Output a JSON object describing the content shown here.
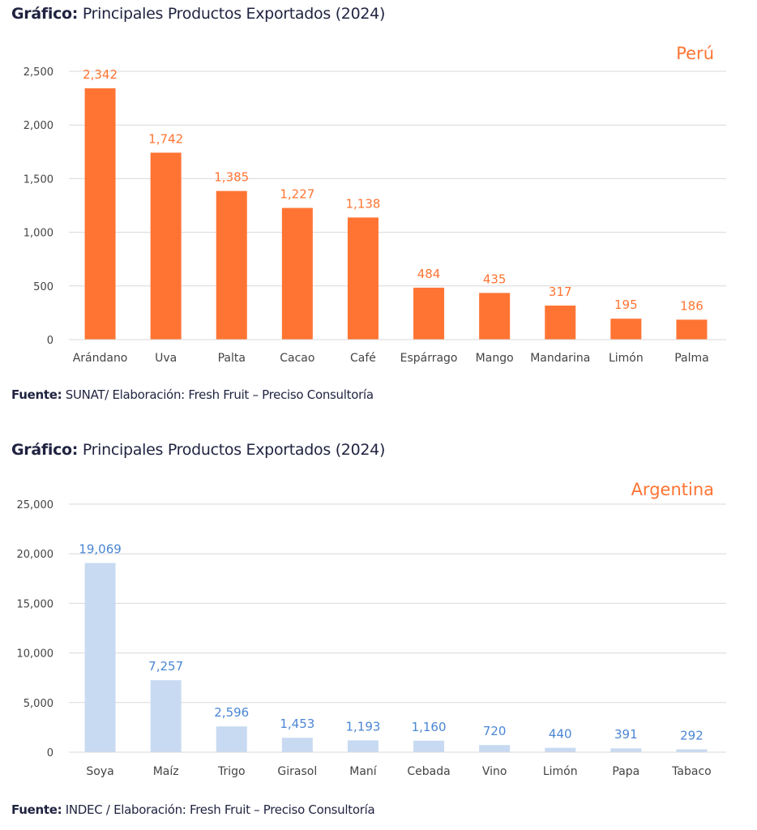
{
  "charts": [
    {
      "heading_bold": "Gráfico:",
      "heading_rest": " Principales Productos Exportados (2024)",
      "source_bold": "Fuente:",
      "source_rest": " SUNAT/ Elaboración: Fresh Fruit – Preciso Consultoría"
    },
    {
      "heading_bold": "Gráfico:",
      "heading_rest": " Principales Productos Exportados (2024)",
      "source_bold": "Fuente:",
      "source_rest": "  INDEC / Elaboración: Fresh Fruit – Preciso Consultoría"
    }
  ],
  "chart_data": [
    {
      "type": "bar",
      "title": "Gráfico: Principales Productos Exportados (2024)",
      "annotation": "Perú",
      "xlabel": "",
      "ylabel": "",
      "ylim": [
        0,
        2500
      ],
      "yticks": [
        0,
        500,
        1000,
        1500,
        2000,
        2500
      ],
      "ytick_labels": [
        "0",
        "500",
        "1,000",
        "1,500",
        "2,000",
        "2,500"
      ],
      "grid": true,
      "bar_color": "#ff7433",
      "label_color": "#ff7433",
      "annotation_color": "#ff7433",
      "categories": [
        "Arándano",
        "Uva",
        "Palta",
        "Cacao",
        "Café",
        "Espárrago",
        "Mango",
        "Mandarina",
        "Limón",
        "Palma"
      ],
      "values": [
        2342,
        1742,
        1385,
        1227,
        1138,
        484,
        435,
        317,
        195,
        186
      ],
      "value_labels": [
        "2,342",
        "1,742",
        "1,385",
        "1,227",
        "1,138",
        "484",
        "435",
        "317",
        "195",
        "186"
      ],
      "source": "Fuente: SUNAT/ Elaboración: Fresh Fruit – Preciso Consultoría"
    },
    {
      "type": "bar",
      "title": "Gráfico: Principales Productos Exportados (2024)",
      "annotation": "Argentina",
      "xlabel": "",
      "ylabel": "",
      "ylim": [
        0,
        25000
      ],
      "yticks": [
        0,
        5000,
        10000,
        15000,
        20000,
        25000
      ],
      "ytick_labels": [
        "0",
        "5,000",
        "10,000",
        "15,000",
        "20,000",
        "25,000"
      ],
      "grid": true,
      "bar_color": "#c8daf2",
      "label_color": "#4a86d4",
      "annotation_color": "#ff7433",
      "categories": [
        "Soya",
        "Maíz",
        "Trigo",
        "Girasol",
        "Maní",
        "Cebada",
        "Vino",
        "Limón",
        "Papa",
        "Tabaco"
      ],
      "values": [
        19069,
        7257,
        2596,
        1453,
        1193,
        1160,
        720,
        440,
        391,
        292
      ],
      "value_labels": [
        "19,069",
        "7,257",
        "2,596",
        "1,453",
        "1,193",
        "1,160",
        "720",
        "440",
        "391",
        "292"
      ],
      "source": "Fuente: INDEC / Elaboración: Fresh Fruit – Preciso Consultoría"
    }
  ]
}
